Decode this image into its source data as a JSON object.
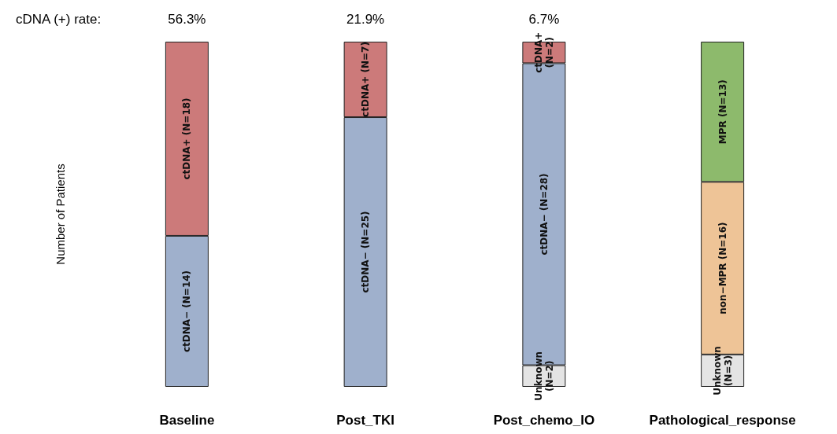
{
  "chart_data": {
    "type": "bar",
    "stacked": true,
    "ylabel": "Number of Patients",
    "categories": [
      "Baseline",
      "Post_TKI",
      "Post_chemo_IO",
      "Pathological_response"
    ],
    "annotations": [
      "cDNA (+) rate:",
      "56.3%",
      "21.9%",
      "6.7%"
    ],
    "series": [
      {
        "color": "#e4e4e4",
        "values": [
          null,
          null,
          2,
          3
        ],
        "value_labels": [
          null,
          null,
          "Unknown (N=2)",
          "Unknown (N=3)"
        ]
      },
      {
        "color": "#9fb0cc",
        "values": [
          14,
          25,
          28,
          null
        ],
        "value_labels": [
          "ctDNA− (N=14)",
          "ctDNA− (N=25)",
          "ctDNA− (N=28)",
          null
        ]
      },
      {
        "color": "#eec497",
        "values": [
          null,
          null,
          null,
          16
        ],
        "value_labels": [
          null,
          null,
          null,
          "non−MPR (N=16)"
        ]
      },
      {
        "color": "#cc7a7a",
        "values": [
          18,
          7,
          2,
          null
        ],
        "value_labels": [
          "ctDNA+ (N=18)",
          "ctDNA+ (N=7)",
          "ctDNA+ (N=2)",
          null
        ]
      },
      {
        "color": "#8dba6c",
        "values": [
          null,
          null,
          null,
          13
        ],
        "value_labels": [
          null,
          null,
          null,
          "MPR (N=13)"
        ]
      }
    ]
  }
}
